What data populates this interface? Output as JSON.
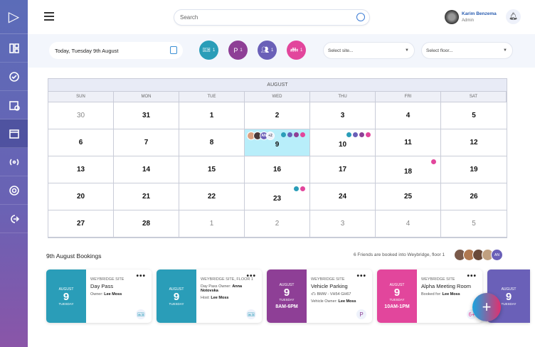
{
  "header": {
    "search_placeholder": "Search",
    "user_name": "Karim Benzema",
    "user_role": "Admin"
  },
  "toolbar": {
    "date_label": "Today, Tuesday 9th August",
    "chips": [
      {
        "icon": "ticket-icon",
        "count": "1",
        "color": "#2a9db8"
      },
      {
        "icon": "parking-icon",
        "count": "1",
        "color": "#8e3f96"
      },
      {
        "icon": "people-icon",
        "count": "1",
        "color": "#6a60b8"
      },
      {
        "icon": "meeting-icon",
        "count": "1",
        "color": "#e2469c"
      }
    ],
    "site_placeholder": "Select site...",
    "floor_placeholder": "Select floor..."
  },
  "calendar": {
    "month": "AUGUST",
    "days": [
      "SUN",
      "MON",
      "TUE",
      "WED",
      "THU",
      "FRI",
      "SAT"
    ],
    "cells": [
      {
        "n": "30",
        "o": true
      },
      {
        "n": "31"
      },
      {
        "n": "1"
      },
      {
        "n": "2"
      },
      {
        "n": "3"
      },
      {
        "n": "4"
      },
      {
        "n": "5"
      },
      {
        "n": "6"
      },
      {
        "n": "7"
      },
      {
        "n": "8"
      },
      {
        "n": "9",
        "sel": true,
        "dots": [
          "#2a9db8",
          "#6a60b8",
          "#8e3f96",
          "#e2469c"
        ],
        "avatars": true
      },
      {
        "n": "10",
        "dots": [
          "#2a9db8",
          "#6a60b8",
          "#8e3f96",
          "#e2469c"
        ]
      },
      {
        "n": "11"
      },
      {
        "n": "12"
      },
      {
        "n": "13"
      },
      {
        "n": "14"
      },
      {
        "n": "15"
      },
      {
        "n": "16"
      },
      {
        "n": "17"
      },
      {
        "n": "18",
        "dots": [
          "#e2469c"
        ]
      },
      {
        "n": "19"
      },
      {
        "n": "20"
      },
      {
        "n": "21"
      },
      {
        "n": "22"
      },
      {
        "n": "23",
        "dots": [
          "#2a9db8",
          "#e2469c"
        ]
      },
      {
        "n": "24"
      },
      {
        "n": "25"
      },
      {
        "n": "26"
      },
      {
        "n": "27"
      },
      {
        "n": "28"
      },
      {
        "n": "1",
        "o": true
      },
      {
        "n": "2",
        "o": true
      },
      {
        "n": "3",
        "o": true
      },
      {
        "n": "4",
        "o": true
      },
      {
        "n": "5",
        "o": true
      }
    ],
    "extra_avatars": "+2",
    "av_initials": "AN"
  },
  "bookings": {
    "title": "9th August Bookings",
    "friends_text": "6 Friends are booked into Weybridge, floor 1",
    "friend_initials": "AN",
    "cards": [
      {
        "color": "#2a9db8",
        "month": "AUGUST",
        "day": "9",
        "weekday": "TUESDAY",
        "time": "",
        "site": "WEYBRIDGE SITE",
        "name": "Day Pass",
        "lines": [
          [
            "Owner: ",
            "Lee Moss"
          ]
        ],
        "icon": "🎫"
      },
      {
        "color": "#2a9db8",
        "month": "AUGUST",
        "day": "9",
        "weekday": "TUESDAY",
        "time": "",
        "site": "WEYBRIDGE SITE, FLOOR 1",
        "name": "",
        "lines": [
          [
            "Day Pass Owner: ",
            "Anna Notovska"
          ],
          [
            "Host: ",
            "Lee Moss"
          ]
        ],
        "icon": "🎫"
      },
      {
        "color": "#8e3f96",
        "month": "AUGUST",
        "day": "9",
        "weekday": "TUESDAY",
        "time": "8AM-6PM",
        "site": "WEYBRIDGE SITE",
        "name": "Vehicle Parking",
        "lines": [
          [
            "🚗 BMW - VH54 GH67",
            ""
          ],
          [
            "Vehicle Owner: ",
            "Lee Moss"
          ]
        ],
        "icon": "P"
      },
      {
        "color": "#e2469c",
        "month": "AUGUST",
        "day": "9",
        "weekday": "TUESDAY",
        "time": "10AM-1PM",
        "site": "WEYBRIDGE SITE",
        "name": "Alpha Meeting Room",
        "lines": [
          [
            "Booked for: ",
            "Lee Moss"
          ]
        ],
        "icon": "6+"
      },
      {
        "color": "#6a60b8",
        "month": "AUGUST",
        "day": "9",
        "weekday": "TUESDAY",
        "time": "",
        "site": "",
        "name": "",
        "lines": [],
        "icon": ""
      }
    ]
  },
  "fab": {
    "label": "+"
  }
}
